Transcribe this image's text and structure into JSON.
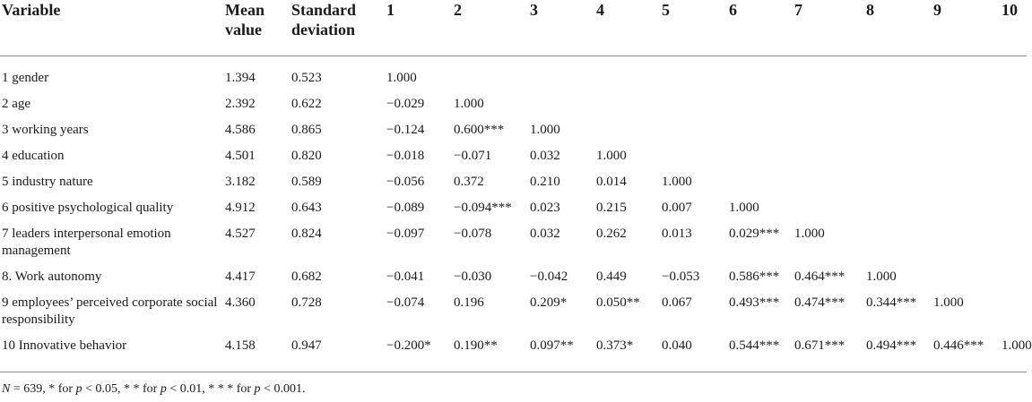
{
  "table": {
    "headers": {
      "variable": "Variable",
      "mean_l1": "Mean",
      "mean_l2": "value",
      "sd_l1": "Standard",
      "sd_l2": "deviation",
      "c1": "1",
      "c2": "2",
      "c3": "3",
      "c4": "4",
      "c5": "5",
      "c6": "6",
      "c7": "7",
      "c8": "8",
      "c9": "9",
      "c10": "10"
    },
    "rows": [
      {
        "variable": "1 gender",
        "mean": "1.394",
        "sd": "0.523",
        "c": [
          "1.000",
          "",
          "",
          "",
          "",
          "",
          "",
          "",
          "",
          ""
        ]
      },
      {
        "variable": "2 age",
        "mean": "2.392",
        "sd": "0.622",
        "c": [
          "−0.029",
          "1.000",
          "",
          "",
          "",
          "",
          "",
          "",
          "",
          ""
        ]
      },
      {
        "variable": "3 working years",
        "mean": "4.586",
        "sd": "0.865",
        "c": [
          "−0.124",
          "0.600***",
          "1.000",
          "",
          "",
          "",
          "",
          "",
          "",
          ""
        ]
      },
      {
        "variable": "4 education",
        "mean": "4.501",
        "sd": "0.820",
        "c": [
          "−0.018",
          "−0.071",
          "0.032",
          "1.000",
          "",
          "",
          "",
          "",
          "",
          ""
        ]
      },
      {
        "variable": "5 industry nature",
        "mean": "3.182",
        "sd": "0.589",
        "c": [
          "−0.056",
          "0.372",
          "0.210",
          "0.014",
          "1.000",
          "",
          "",
          "",
          "",
          ""
        ]
      },
      {
        "variable": "6 positive psychological quality",
        "mean": "4.912",
        "sd": "0.643",
        "c": [
          "−0.089",
          "−0.094***",
          "0.023",
          "0.215",
          "0.007",
          "1.000",
          "",
          "",
          "",
          ""
        ]
      },
      {
        "variable": "7 leaders interpersonal emotion management",
        "mean": "4.527",
        "sd": "0.824",
        "c": [
          "−0.097",
          "−0.078",
          "0.032",
          "0.262",
          "0.013",
          "0.029***",
          "1.000",
          "",
          "",
          ""
        ]
      },
      {
        "variable": "8. Work autonomy",
        "mean": "4.417",
        "sd": "0.682",
        "c": [
          "−0.041",
          "−0.030",
          "−0.042",
          "0.449",
          "−0.053",
          "0.586***",
          "0.464***",
          "1.000",
          "",
          ""
        ]
      },
      {
        "variable": "9 employees’ perceived corporate social responsibility",
        "mean": "4.360",
        "sd": "0.728",
        "c": [
          "−0.074",
          "0.196",
          "0.209*",
          "0.050**",
          "0.067",
          "0.493***",
          "0.474***",
          "0.344***",
          "1.000",
          ""
        ]
      },
      {
        "variable": "10 Innovative behavior",
        "mean": "4.158",
        "sd": "0.947",
        "c": [
          "−0.200*",
          "0.190**",
          "0.097**",
          "0.373*",
          "0.040",
          "0.544***",
          "0.671***",
          "0.494***",
          "0.446***",
          "1.000"
        ]
      }
    ],
    "footnote": {
      "n_label": "N",
      "n_text": " = 639, * for ",
      "p1": "p",
      "t1": " < 0.05, * * for ",
      "p2": "p",
      "t2": " < 0.01, * * * for ",
      "p3": "p",
      "t3": " < 0.001."
    }
  }
}
